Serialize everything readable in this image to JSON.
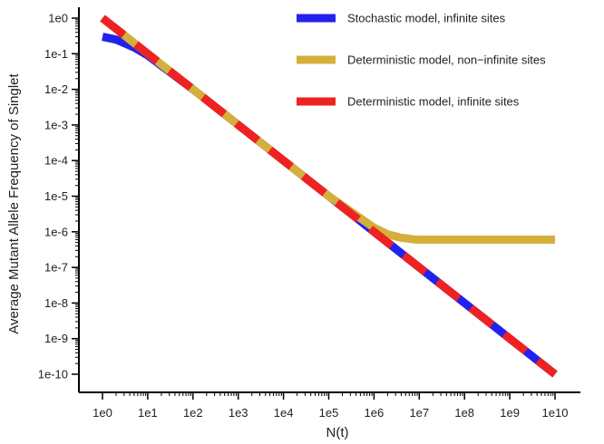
{
  "chart_data": {
    "type": "line",
    "title": "",
    "xlabel": "N(t)",
    "ylabel": "Average Mutant Allele Frequency of Singlet",
    "xscale": "log10",
    "yscale": "log10",
    "xlim": [
      1,
      10000000000
    ],
    "ylim": [
      1e-10,
      1
    ],
    "xticks": [
      "1e0",
      "1e1",
      "1e2",
      "1e3",
      "1e4",
      "1e5",
      "1e6",
      "1e7",
      "1e8",
      "1e9",
      "1e10"
    ],
    "yticks": [
      "1e-10",
      "1e-9",
      "1e-8",
      "1e-7",
      "1e-6",
      "1e-5",
      "1e-4",
      "1e-3",
      "1e-2",
      "1e-1",
      "1e0"
    ],
    "grid": false,
    "legend_position": "top-right",
    "series": [
      {
        "name": "Stochastic model, infinite sites",
        "color": "#2222ee",
        "style": "solid",
        "x": [
          1,
          2,
          5,
          10,
          100,
          1000,
          10000,
          100000,
          1000000,
          10000000,
          100000000,
          1000000000,
          10000000000
        ],
        "y": [
          0.3,
          0.25,
          0.15,
          0.09,
          0.01,
          0.001,
          0.0001,
          1e-05,
          1e-06,
          1e-07,
          1e-08,
          1e-09,
          1e-10
        ]
      },
      {
        "name": "Deterministic model, non−infinite sites",
        "color": "#d4b03a",
        "style": "solid",
        "x": [
          1,
          10,
          100,
          1000,
          10000,
          100000,
          1000000,
          2000000,
          4000000,
          7000000,
          10000000,
          100000000,
          1000000000,
          10000000000
        ],
        "y": [
          1,
          0.1,
          0.01,
          0.001,
          0.0001,
          1e-05,
          1.3e-06,
          8.5e-07,
          6.8e-07,
          6.2e-07,
          6e-07,
          6e-07,
          6e-07,
          6e-07
        ]
      },
      {
        "name": "Deterministic model, infinite sites",
        "color": "#ee2222",
        "style": "dashed",
        "x": [
          1,
          10000000000
        ],
        "y": [
          1,
          1e-10
        ]
      }
    ]
  }
}
